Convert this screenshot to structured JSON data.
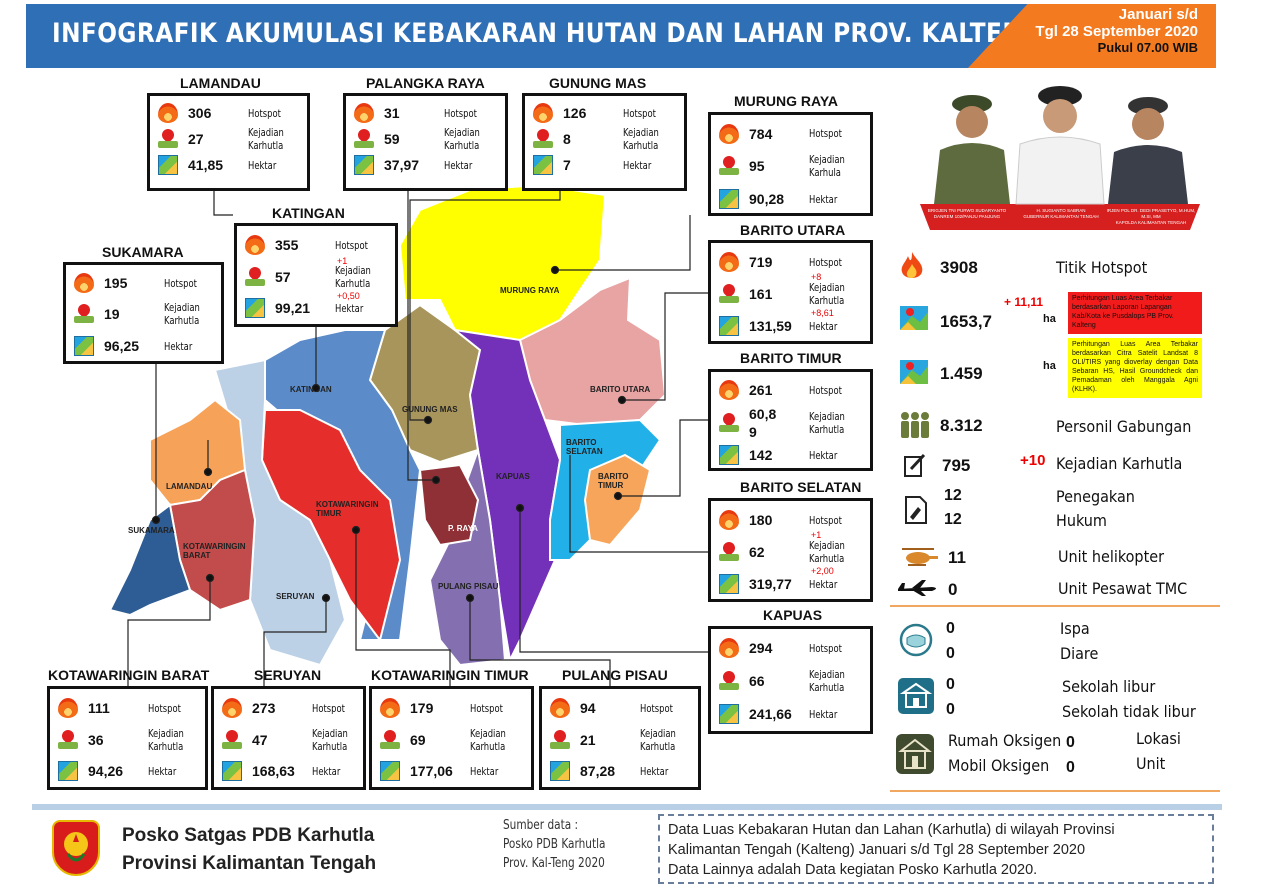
{
  "header": {
    "title": "INFOGRAFIK AKUMULASI KEBAKARAN HUTAN DAN LAHAN PROV. KALTENG",
    "date_line1": "Januari s/d",
    "date_line2": "Tgl 28 September 2020",
    "date_line3": "Pukul 07.00 WIB"
  },
  "labels": {
    "hotspot": "Hotspot",
    "kejadian": "Kejadian",
    "karhutla": "Karhutla",
    "karhula": "Karhula",
    "hektar": "Hektar"
  },
  "regions": {
    "lamandau": {
      "name": "LAMANDAU",
      "hotspot": "306",
      "kejadian": "27",
      "hektar": "41,85"
    },
    "palangka": {
      "name": "PALANGKA RAYA",
      "hotspot": "31",
      "kejadian": "59",
      "hektar": "37,97"
    },
    "gunungmas": {
      "name": "GUNUNG MAS",
      "hotspot": "126",
      "kejadian": "8",
      "hektar": "7"
    },
    "murungraya": {
      "name": "MURUNG RAYA",
      "hotspot": "784",
      "kejadian": "95",
      "hektar": "90,28"
    },
    "katingan": {
      "name": "KATINGAN",
      "hotspot": "355",
      "kejadian": "57",
      "hektar": "99,21",
      "d_kejadian": "+1",
      "d_hektar": "+0,50"
    },
    "sukamara": {
      "name": "SUKAMARA",
      "hotspot": "195",
      "kejadian": "19",
      "hektar": "96,25"
    },
    "baritoutara": {
      "name": "BARITO UTARA",
      "hotspot": "719",
      "kejadian": "161",
      "hektar": "131,59",
      "d_kejadian": "+8",
      "d_hektar": "+8,61"
    },
    "baritotimur": {
      "name": "BARITO TIMUR",
      "hotspot": "261",
      "kejadian": "60,8",
      "kejadian2": "9",
      "hektar": "142"
    },
    "baritoselatan": {
      "name": "BARITO SELATAN",
      "hotspot": "180",
      "kejadian": "62",
      "hektar": "319,77",
      "d_kejadian": "+1",
      "d_hektar": "+2,00"
    },
    "kapuas": {
      "name": "KAPUAS",
      "hotspot": "294",
      "kejadian": "66",
      "hektar": "241,66"
    },
    "kobar": {
      "name": "KOTAWARINGIN BARAT",
      "hotspot": "111",
      "kejadian": "36",
      "hektar": "94,26"
    },
    "seruyan": {
      "name": "SERUYAN",
      "hotspot": "273",
      "kejadian": "47",
      "hektar": "168,63"
    },
    "kotim": {
      "name": "KOTAWARINGIN TIMUR",
      "hotspot": "179",
      "kejadian": "69",
      "hektar": "177,06"
    },
    "pulangpisau": {
      "name": "PULANG PISAU",
      "hotspot": "94",
      "kejadian": "21",
      "hektar": "87,28"
    }
  },
  "map_labels": {
    "murungraya": "MURUNG RAYA",
    "baritoutara": "BARITO UTARA",
    "katingan": "KATINGAN",
    "gunungmas": "GUNUNG MAS",
    "baritoselatan": "BARITO SELATAN",
    "baritotimur": "BARITO TIMUR",
    "lamandau": "LAMANDAU",
    "kotim": "KOTAWARINGIN TIMUR",
    "kapuas": "KAPUAS",
    "sukamara": "SUKAMARA",
    "kobar": "KOTAWARINGIN BARAT",
    "praya": "P. RAYA",
    "seruyan": "SERUYAN",
    "pulangpisau": "PULANG PISAU"
  },
  "summary": {
    "hotspot_value": "3908",
    "hotspot_label": "Titik Hotspot",
    "area1_value": "1653,7",
    "area1_delta": "+ 11,11",
    "area_unit": "ha",
    "area1_note": "Perhitungan Luas Area Terbakar berdasarkan Laporan Lapangan Kab/Kota ke Pusdalops PB Prov. Kalteng",
    "area2_value": "1.459",
    "area2_note": "Perhitungan Luas Area Terbakar berdasarkan Citra Satelit Landsat 8 OLI/TIRS yang dioverlay dengan Data Sebaran HS, Hasil Groundcheck dan Pemadaman oleh Manggala Agni (KLHK).",
    "personil_value": "8.312",
    "personil_label": "Personil Gabungan",
    "kejadian_value": "795",
    "kejadian_delta": "+10",
    "kejadian_label": "Kejadian Karhutla",
    "penegakan_value1": "12",
    "penegakan_value2": "12",
    "penegakan_label1": "Penegakan",
    "penegakan_label2": "Hukum",
    "heli_value": "11",
    "heli_label": "Unit helikopter",
    "tmc_value": "0",
    "tmc_label": "Unit Pesawat TMC",
    "ispa_value": "0",
    "ispa_label": "Ispa",
    "diare_value": "0",
    "diare_label": "Diare",
    "sekolah_libur_value": "0",
    "sekolah_libur_label": "Sekolah libur",
    "sekolah_tidak_value": "0",
    "sekolah_tidak_label": "Sekolah tidak libur",
    "rumah_oksigen_label": "Rumah Oksigen",
    "rumah_oksigen_value": "0",
    "lokasi_label": "Lokasi",
    "mobil_oksigen_label": "Mobil Oksigen",
    "mobil_oksigen_value": "0",
    "unit_label": "Unit"
  },
  "officials": {
    "left_name": "BRIGJEN TNI PURWO SUDARYANTO",
    "left_title": "DANREM 102/PANJU PANJUNG",
    "center_name": "H. SUGIANTO SABRAN",
    "center_title": "GUBERNUR KALIMANTAN TENGAH",
    "right_name": "IRJEN POL DR. DEDI PRASETYO, M.HUM, M.SI, MM",
    "right_title": "KAPOLDA KALIMANTAN TENGAH"
  },
  "footer": {
    "org_line1": "Posko Satgas PDB Karhutla",
    "org_line2": "Provinsi Kalimantan Tengah",
    "source_line1": "Sumber data :",
    "source_line2": "Posko PDB Karhutla",
    "source_line3": "Prov. Kal-Teng 2020",
    "note_line1": "Data Luas Kebakaran Hutan dan Lahan (Karhutla) di wilayah Provinsi",
    "note_line2": "Kalimantan Tengah (Kalteng)  Januari s/d  Tgl 28 September 2020",
    "note_line3": "Data Lainnya adalah Data kegiatan Posko Karhutla 2020."
  }
}
